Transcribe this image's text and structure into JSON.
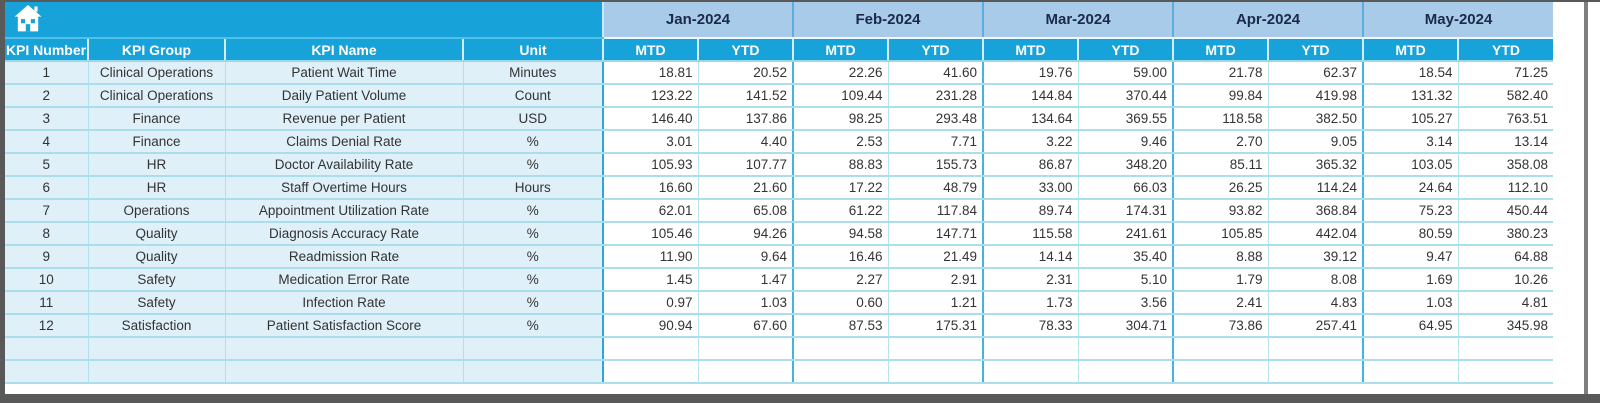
{
  "colors": {
    "header_blue": "#17a2d9",
    "month_band_blue": "#a8cbe9",
    "row_tint_blue": "#dff0f9",
    "gridline_teal": "#abdeec",
    "frame_gray": "#595959"
  },
  "toolbar": {
    "home_icon": "home-icon"
  },
  "table": {
    "left_headers": [
      "KPI Number",
      "KPI Group",
      "KPI Name",
      "Unit"
    ],
    "months": [
      "Jan-2024",
      "Feb-2024",
      "Mar-2024",
      "Apr-2024",
      "May-2024"
    ],
    "sub_headers": [
      "MTD",
      "YTD"
    ],
    "empty_rows": 2,
    "rows": [
      {
        "number": "1",
        "group": "Clinical Operations",
        "name": "Patient Wait Time",
        "unit": "Minutes",
        "values": [
          "18.81",
          "20.52",
          "22.26",
          "41.60",
          "19.76",
          "59.00",
          "21.78",
          "62.37",
          "18.54",
          "71.25"
        ]
      },
      {
        "number": "2",
        "group": "Clinical Operations",
        "name": "Daily Patient Volume",
        "unit": "Count",
        "values": [
          "123.22",
          "141.52",
          "109.44",
          "231.28",
          "144.84",
          "370.44",
          "99.84",
          "419.98",
          "131.32",
          "582.40"
        ]
      },
      {
        "number": "3",
        "group": "Finance",
        "name": "Revenue per Patient",
        "unit": "USD",
        "values": [
          "146.40",
          "137.86",
          "98.25",
          "293.48",
          "134.64",
          "369.55",
          "118.58",
          "382.50",
          "105.27",
          "763.51"
        ]
      },
      {
        "number": "4",
        "group": "Finance",
        "name": "Claims Denial Rate",
        "unit": "%",
        "values": [
          "3.01",
          "4.40",
          "2.53",
          "7.71",
          "3.22",
          "9.46",
          "2.70",
          "9.05",
          "3.14",
          "13.14"
        ]
      },
      {
        "number": "5",
        "group": "HR",
        "name": "Doctor Availability Rate",
        "unit": "%",
        "values": [
          "105.93",
          "107.77",
          "88.83",
          "155.73",
          "86.87",
          "348.20",
          "85.11",
          "365.32",
          "103.05",
          "358.08"
        ]
      },
      {
        "number": "6",
        "group": "HR",
        "name": "Staff Overtime Hours",
        "unit": "Hours",
        "values": [
          "16.60",
          "21.60",
          "17.22",
          "48.79",
          "33.00",
          "66.03",
          "26.25",
          "114.24",
          "24.64",
          "112.10"
        ]
      },
      {
        "number": "7",
        "group": "Operations",
        "name": "Appointment Utilization Rate",
        "unit": "%",
        "values": [
          "62.01",
          "65.08",
          "61.22",
          "117.84",
          "89.74",
          "174.31",
          "93.82",
          "368.84",
          "75.23",
          "450.44"
        ]
      },
      {
        "number": "8",
        "group": "Quality",
        "name": "Diagnosis Accuracy Rate",
        "unit": "%",
        "values": [
          "105.46",
          "94.26",
          "94.58",
          "147.71",
          "115.58",
          "241.61",
          "105.85",
          "442.04",
          "80.59",
          "380.23"
        ]
      },
      {
        "number": "9",
        "group": "Quality",
        "name": "Readmission Rate",
        "unit": "%",
        "values": [
          "11.90",
          "9.64",
          "16.46",
          "21.49",
          "14.14",
          "35.40",
          "8.88",
          "39.12",
          "9.47",
          "64.88"
        ]
      },
      {
        "number": "10",
        "group": "Safety",
        "name": "Medication Error Rate",
        "unit": "%",
        "values": [
          "1.45",
          "1.47",
          "2.27",
          "2.91",
          "2.31",
          "5.10",
          "1.79",
          "8.08",
          "1.69",
          "10.26"
        ]
      },
      {
        "number": "11",
        "group": "Safety",
        "name": "Infection Rate",
        "unit": "%",
        "values": [
          "0.97",
          "1.03",
          "0.60",
          "1.21",
          "1.73",
          "3.56",
          "2.41",
          "4.83",
          "1.03",
          "4.81"
        ]
      },
      {
        "number": "12",
        "group": "Satisfaction",
        "name": "Patient Satisfaction Score",
        "unit": "%",
        "values": [
          "90.94",
          "67.60",
          "87.53",
          "175.31",
          "78.33",
          "304.71",
          "73.86",
          "257.41",
          "64.95",
          "345.98"
        ]
      }
    ]
  }
}
